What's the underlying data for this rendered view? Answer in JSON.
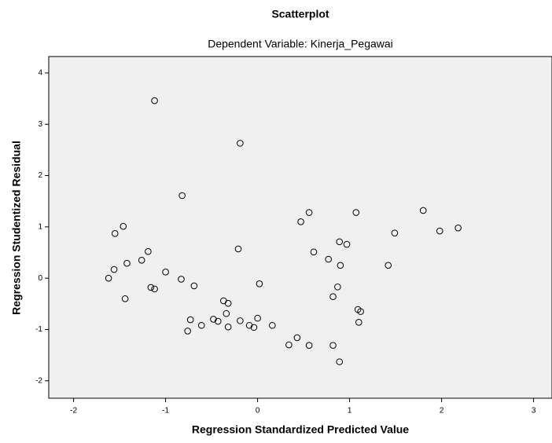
{
  "chart_data": {
    "type": "scatter",
    "title": "Scatterplot",
    "subtitle": "Dependent Variable: Kinerja_Pegawai",
    "x_label": "Regression Standardized Predicted Value",
    "y_label": "Regression Studentized Residual",
    "x": [
      -1.12,
      -0.19,
      -0.82,
      -1.46,
      -1.55,
      -1.19,
      -1.26,
      -1.42,
      -1.56,
      -1.62,
      -1.0,
      -0.83,
      -0.69,
      -1.16,
      -1.12,
      -1.44,
      -0.21,
      0.02,
      -0.37,
      -0.32,
      -0.34,
      -0.73,
      -0.48,
      -0.43,
      -0.19,
      0.0,
      -0.61,
      -0.32,
      -0.09,
      -0.04,
      0.16,
      -0.76,
      0.47,
      0.56,
      1.07,
      0.61,
      0.77,
      0.89,
      0.97,
      0.9,
      0.87,
      0.82,
      1.09,
      1.12,
      1.1,
      0.43,
      0.34,
      0.56,
      0.82,
      0.89,
      1.42,
      1.49,
      1.8,
      1.98,
      2.18
    ],
    "values": [
      3.46,
      2.63,
      1.61,
      1.01,
      0.87,
      0.52,
      0.35,
      0.29,
      0.17,
      0.0,
      0.12,
      -0.02,
      -0.15,
      -0.18,
      -0.21,
      -0.4,
      0.57,
      -0.11,
      -0.44,
      -0.49,
      -0.69,
      -0.81,
      -0.8,
      -0.84,
      -0.83,
      -0.78,
      -0.92,
      -0.95,
      -0.92,
      -0.96,
      -0.92,
      -1.03,
      1.1,
      1.28,
      1.28,
      0.51,
      0.37,
      0.71,
      0.66,
      0.25,
      -0.17,
      -0.36,
      -0.61,
      -0.65,
      -0.86,
      -1.16,
      -1.3,
      -1.31,
      -1.31,
      -1.63,
      0.25,
      0.88,
      1.32,
      0.92,
      0.98
    ],
    "color": "#000000",
    "xlim": [
      -2.27,
      3.2
    ],
    "xticks": [
      -2,
      -1,
      0,
      1,
      2,
      3
    ],
    "ylim": [
      -2.34,
      4.32
    ],
    "yticks": [
      -2,
      -1,
      0,
      1,
      2,
      3,
      4
    ],
    "background": "#f0f0f0"
  }
}
